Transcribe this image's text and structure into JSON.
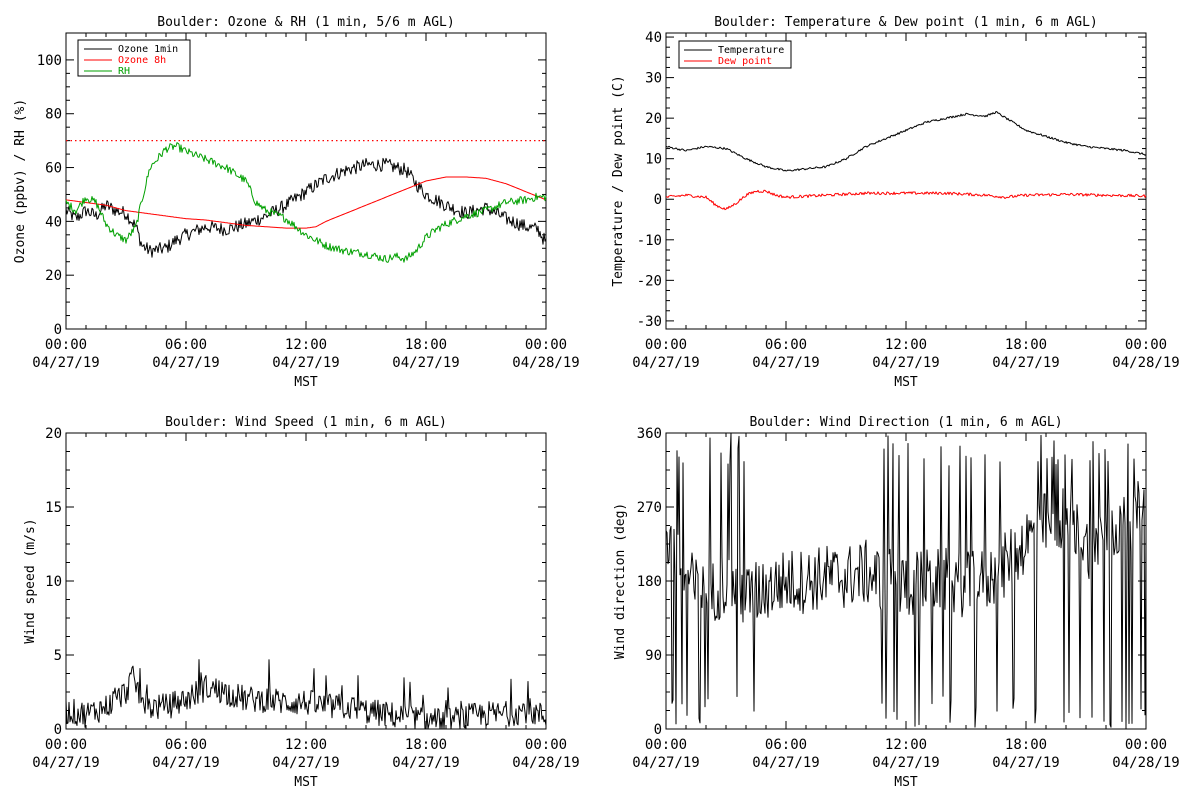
{
  "chart_data": [
    {
      "id": "ozone_rh",
      "type": "line",
      "title": "Boulder: Ozone & RH (1 min, 5/6 m AGL)",
      "xlabel": "MST",
      "ylabel": "Ozone (ppbv) / RH (%)",
      "ylim": [
        0,
        110
      ],
      "yticks": [
        "0",
        "20",
        "40",
        "60",
        "80",
        "100"
      ],
      "xticks": [
        {
          "time": "00:00",
          "date": "04/27/19"
        },
        {
          "time": "06:00",
          "date": "04/27/19"
        },
        {
          "time": "12:00",
          "date": "04/27/19"
        },
        {
          "time": "18:00",
          "date": "04/27/19"
        },
        {
          "time": "00:00",
          "date": "04/28/19"
        }
      ],
      "xlim_hours": [
        0,
        24
      ],
      "legend": "top-left",
      "reference_line": {
        "y": 70,
        "color": "#ff0000",
        "style": "dotted"
      },
      "series": [
        {
          "name": "Ozone 1min",
          "color": "#000000",
          "noise": 2.5,
          "points": [
            [
              0,
              44
            ],
            [
              0.5,
              41
            ],
            [
              1,
              44
            ],
            [
              1.5,
              42
            ],
            [
              2,
              46
            ],
            [
              2.5,
              44
            ],
            [
              3,
              43
            ],
            [
              3.5,
              38
            ],
            [
              3.8,
              31
            ],
            [
              4.2,
              29
            ],
            [
              5,
              30
            ],
            [
              5.5,
              33
            ],
            [
              6,
              35
            ],
            [
              7,
              38
            ],
            [
              8,
              37
            ],
            [
              9,
              39
            ],
            [
              10,
              42
            ],
            [
              11,
              46
            ],
            [
              12,
              51
            ],
            [
              13,
              56
            ],
            [
              14,
              59
            ],
            [
              15,
              61
            ],
            [
              16,
              61
            ],
            [
              17,
              59
            ],
            [
              17.5,
              54
            ],
            [
              18,
              50
            ],
            [
              19,
              46
            ],
            [
              20,
              43
            ],
            [
              21,
              45
            ],
            [
              22,
              41
            ],
            [
              23,
              38
            ],
            [
              23.6,
              37
            ],
            [
              24,
              32
            ]
          ]
        },
        {
          "name": "Ozone 8h",
          "color": "#ff0000",
          "noise": 0,
          "points": [
            [
              0,
              48
            ],
            [
              1,
              47
            ],
            [
              2,
              46
            ],
            [
              3,
              44
            ],
            [
              4,
              43
            ],
            [
              5,
              42
            ],
            [
              6,
              41
            ],
            [
              7,
              40.5
            ],
            [
              8,
              39.5
            ],
            [
              9,
              38.5
            ],
            [
              10,
              38
            ],
            [
              11,
              37.5
            ],
            [
              12,
              37.5
            ],
            [
              12.5,
              38
            ],
            [
              13,
              40
            ],
            [
              14,
              43
            ],
            [
              15,
              46
            ],
            [
              16,
              49
            ],
            [
              17,
              52
            ],
            [
              18,
              55
            ],
            [
              19,
              56.5
            ],
            [
              20,
              56.5
            ],
            [
              21,
              56
            ],
            [
              22,
              54
            ],
            [
              23,
              51
            ],
            [
              24,
              48
            ]
          ]
        },
        {
          "name": "RH",
          "color": "#00a000",
          "noise": 1.5,
          "points": [
            [
              0,
              47
            ],
            [
              0.5,
              44
            ],
            [
              1,
              49
            ],
            [
              1.5,
              47
            ],
            [
              2,
              39
            ],
            [
              2.5,
              35
            ],
            [
              3,
              33
            ],
            [
              3.5,
              38
            ],
            [
              3.8,
              48
            ],
            [
              4.2,
              60
            ],
            [
              5,
              67
            ],
            [
              5.5,
              68
            ],
            [
              6,
              66
            ],
            [
              7,
              63
            ],
            [
              8,
              60
            ],
            [
              9,
              55
            ],
            [
              9.5,
              47
            ],
            [
              10,
              44
            ],
            [
              11,
              41
            ],
            [
              12,
              35
            ],
            [
              13,
              31
            ],
            [
              14,
              29
            ],
            [
              15,
              28
            ],
            [
              16,
              26
            ],
            [
              16.5,
              27
            ],
            [
              17,
              26
            ],
            [
              17.5,
              29
            ],
            [
              18,
              34
            ],
            [
              18.5,
              37
            ],
            [
              19,
              39
            ],
            [
              20,
              42
            ],
            [
              21,
              44
            ],
            [
              22,
              47
            ],
            [
              23,
              48
            ],
            [
              23.5,
              49
            ],
            [
              24,
              49
            ]
          ]
        }
      ]
    },
    {
      "id": "temp_dew",
      "type": "line",
      "title": "Boulder: Temperature & Dew point (1 min, 6 m AGL)",
      "xlabel": "MST",
      "ylabel": "Temperature / Dew point (C)",
      "ylim": [
        -32,
        41
      ],
      "yticks": [
        "-30",
        "-20",
        "-10",
        "0",
        "10",
        "20",
        "30",
        "40"
      ],
      "xticks": [
        {
          "time": "00:00",
          "date": "04/27/19"
        },
        {
          "time": "06:00",
          "date": "04/27/19"
        },
        {
          "time": "12:00",
          "date": "04/27/19"
        },
        {
          "time": "18:00",
          "date": "04/27/19"
        },
        {
          "time": "00:00",
          "date": "04/28/19"
        }
      ],
      "xlim_hours": [
        0,
        24
      ],
      "legend": "top-left",
      "series": [
        {
          "name": "Temperature",
          "color": "#000000",
          "noise": 0.25,
          "points": [
            [
              0,
              13
            ],
            [
              1,
              12
            ],
            [
              2,
              13
            ],
            [
              3,
              12.5
            ],
            [
              4,
              10
            ],
            [
              5,
              8
            ],
            [
              6,
              7
            ],
            [
              7,
              7.5
            ],
            [
              8,
              8
            ],
            [
              9,
              10
            ],
            [
              10,
              13
            ],
            [
              11,
              15
            ],
            [
              12,
              17
            ],
            [
              13,
              19
            ],
            [
              14,
              20
            ],
            [
              15,
              21
            ],
            [
              16,
              20.5
            ],
            [
              16.5,
              21.5
            ],
            [
              17,
              20
            ],
            [
              18,
              17
            ],
            [
              19,
              15.5
            ],
            [
              20,
              14
            ],
            [
              21,
              13
            ],
            [
              22,
              12.5
            ],
            [
              23,
              12
            ],
            [
              24,
              11
            ]
          ]
        },
        {
          "name": "Dew point",
          "color": "#ff0000",
          "noise": 0.35,
          "points": [
            [
              0,
              0.5
            ],
            [
              1,
              1
            ],
            [
              2,
              0.5
            ],
            [
              2.5,
              -1.5
            ],
            [
              3,
              -2.5
            ],
            [
              3.5,
              -1
            ],
            [
              4,
              1
            ],
            [
              4.5,
              2
            ],
            [
              5,
              2
            ],
            [
              5.5,
              1
            ],
            [
              6,
              0.5
            ],
            [
              8,
              1
            ],
            [
              10,
              1.5
            ],
            [
              12,
              1.5
            ],
            [
              14,
              1.5
            ],
            [
              16,
              1
            ],
            [
              17,
              0.5
            ],
            [
              18,
              1
            ],
            [
              20,
              1.2
            ],
            [
              22,
              1
            ],
            [
              24,
              0.8
            ]
          ]
        }
      ]
    },
    {
      "id": "wind_speed",
      "type": "line",
      "title": "Boulder: Wind Speed (1 min, 6 m AGL)",
      "xlabel": "MST",
      "ylabel": "Wind speed (m/s)",
      "ylim": [
        0,
        20
      ],
      "yticks": [
        "0",
        "5",
        "10",
        "15",
        "20"
      ],
      "xticks": [
        {
          "time": "00:00",
          "date": "04/27/19"
        },
        {
          "time": "06:00",
          "date": "04/27/19"
        },
        {
          "time": "12:00",
          "date": "04/27/19"
        },
        {
          "time": "18:00",
          "date": "04/27/19"
        },
        {
          "time": "00:00",
          "date": "04/28/19"
        }
      ],
      "xlim_hours": [
        0,
        24
      ],
      "legend": "none",
      "series": [
        {
          "color": "#000000",
          "noise": 0.9,
          "min": 0,
          "points": [
            [
              0,
              1.2
            ],
            [
              1,
              1
            ],
            [
              2,
              1.5
            ],
            [
              3,
              2.5
            ],
            [
              3.3,
              3.5
            ],
            [
              4,
              1.5
            ],
            [
              5,
              1.5
            ],
            [
              6,
              2
            ],
            [
              7,
              2.8
            ],
            [
              8,
              2.5
            ],
            [
              9,
              2
            ],
            [
              10,
              2
            ],
            [
              11,
              1.8
            ],
            [
              12,
              1.8
            ],
            [
              13,
              1.5
            ],
            [
              14,
              1.5
            ],
            [
              15,
              1.2
            ],
            [
              16,
              1
            ],
            [
              17,
              0.8
            ],
            [
              18,
              0.6
            ],
            [
              19,
              0.5
            ],
            [
              20,
              0.8
            ],
            [
              21,
              1
            ],
            [
              22,
              1
            ],
            [
              23,
              1.3
            ],
            [
              24,
              0.8
            ]
          ]
        }
      ]
    },
    {
      "id": "wind_dir",
      "type": "line",
      "title": "Boulder: Wind Direction (1 min, 6 m AGL)",
      "xlabel": "MST",
      "ylabel": "Wind direction (deg)",
      "ylim": [
        0,
        360
      ],
      "yticks": [
        "0",
        "90",
        "180",
        "270",
        "360"
      ],
      "xticks": [
        {
          "time": "00:00",
          "date": "04/27/19"
        },
        {
          "time": "06:00",
          "date": "04/27/19"
        },
        {
          "time": "12:00",
          "date": "04/27/19"
        },
        {
          "time": "18:00",
          "date": "04/27/19"
        },
        {
          "time": "00:00",
          "date": "04/28/19"
        }
      ],
      "xlim_hours": [
        0,
        24
      ],
      "legend": "none",
      "series": [
        {
          "color": "#000000",
          "noise": 40,
          "min": 0,
          "max": 360,
          "points": [
            [
              0,
              240
            ],
            [
              0.8,
              190
            ],
            [
              1.5,
              170
            ],
            [
              2,
              160
            ],
            [
              3,
              180
            ],
            [
              4,
              160
            ],
            [
              5,
              170
            ],
            [
              6,
              180
            ],
            [
              7,
              180
            ],
            [
              8,
              185
            ],
            [
              9,
              185
            ],
            [
              10,
              190
            ],
            [
              11,
              180
            ],
            [
              12,
              175
            ],
            [
              13,
              180
            ],
            [
              14,
              180
            ],
            [
              15,
              175
            ],
            [
              16,
              180
            ],
            [
              17,
              200
            ],
            [
              18,
              230
            ],
            [
              19,
              250
            ],
            [
              20,
              260
            ],
            [
              21,
              220
            ],
            [
              22,
              240
            ],
            [
              23,
              250
            ],
            [
              24,
              270
            ]
          ]
        }
      ]
    }
  ]
}
